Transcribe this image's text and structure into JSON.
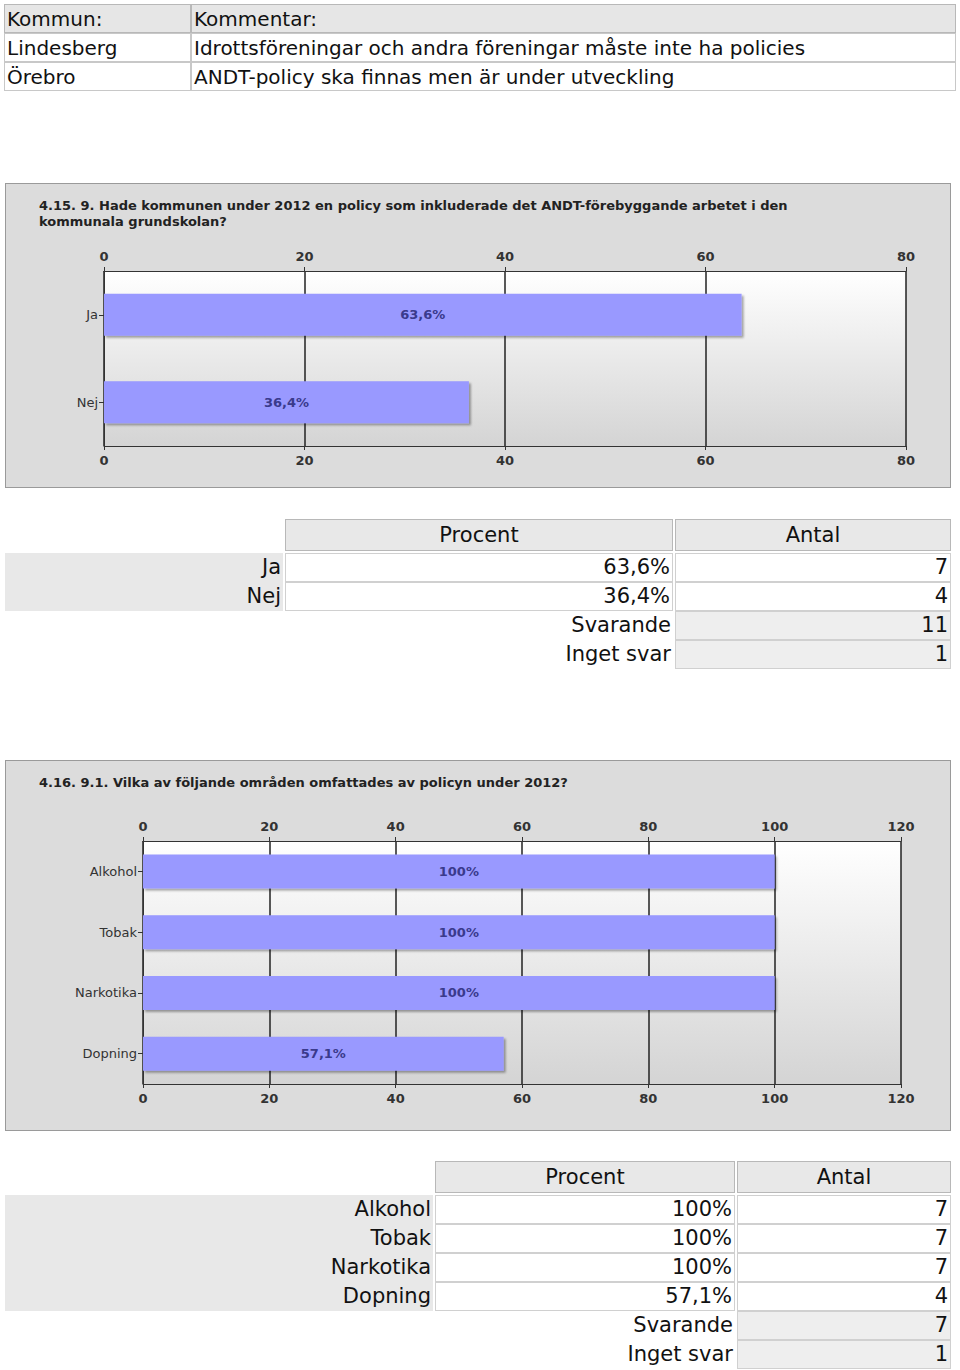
{
  "comments_table": {
    "header": [
      "Kommun:",
      "Kommentar:"
    ],
    "rows": [
      [
        "Lindesberg",
        "Idrottsföreningar och andra föreningar måste inte ha policies"
      ],
      [
        "Örebro",
        "ANDT-policy ska finnas men är under utveckling"
      ]
    ]
  },
  "chart_data": [
    {
      "type": "bar",
      "title": "4.15. 9. Hade kommunen under 2012 en policy som inkluderade det ANDT-förebyggande arbetet i den kommunala grundskolan?",
      "categories": [
        "Ja",
        "Nej"
      ],
      "values": [
        63.6,
        36.4
      ],
      "value_labels": [
        "63,6%",
        "36,4%"
      ],
      "color": "#9999ff",
      "xlim": [
        0,
        80
      ],
      "xticks": [
        0,
        20,
        40,
        60,
        80
      ],
      "orientation": "horizontal",
      "data_labels": true,
      "grid": true
    },
    {
      "type": "bar",
      "title": "4.16. 9.1. Vilka av följande områden omfattades av policyn under 2012?",
      "categories": [
        "Alkohol",
        "Tobak",
        "Narkotika",
        "Dopning"
      ],
      "values": [
        100,
        100,
        100,
        57.1
      ],
      "value_labels": [
        "100%",
        "100%",
        "100%",
        "57,1%"
      ],
      "color": "#9999ff",
      "xlim": [
        0,
        120
      ],
      "xticks": [
        0,
        20,
        40,
        60,
        80,
        100,
        120
      ],
      "orientation": "horizontal",
      "data_labels": true,
      "grid": true
    }
  ],
  "tables": [
    {
      "header": [
        "Procent",
        "Antal"
      ],
      "rows": [
        [
          "Ja",
          "63,6%",
          7
        ],
        [
          "Nej",
          "36,4%",
          4
        ]
      ],
      "summary": [
        [
          "Svarande",
          11
        ],
        [
          "Inget svar",
          1
        ]
      ]
    },
    {
      "header": [
        "Procent",
        "Antal"
      ],
      "rows": [
        [
          "Alkohol",
          "100%",
          7
        ],
        [
          "Tobak",
          "100%",
          7
        ],
        [
          "Narkotika",
          "100%",
          7
        ],
        [
          "Dopning",
          "57,1%",
          4
        ]
      ],
      "summary": [
        [
          "Svarande",
          7
        ],
        [
          "Inget svar",
          1
        ]
      ]
    }
  ]
}
